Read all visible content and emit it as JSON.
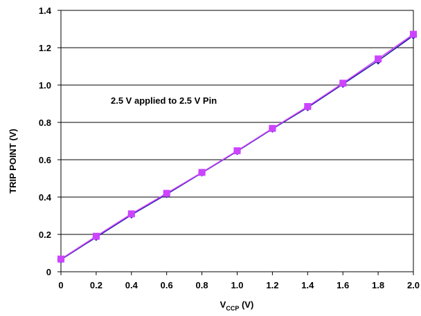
{
  "chart_data": {
    "type": "line",
    "title": "",
    "xlabel": "V",
    "xlabel_sub": "CCP",
    "xlabel_unit": " (V)",
    "ylabel": "TRIP POINT (V)",
    "annotation": "2.5 V applied to 2.5 V Pin",
    "xlim": [
      0,
      2.0
    ],
    "ylim": [
      0,
      1.4
    ],
    "x_ticks": [
      "0",
      "0.2",
      "0.4",
      "0.6",
      "0.8",
      "1.0",
      "1.2",
      "1.4",
      "1.6",
      "1.8",
      "2.0"
    ],
    "y_ticks": [
      "0",
      "0.2",
      "0.4",
      "0.6",
      "0.8",
      "1.0",
      "1.2",
      "1.4"
    ],
    "grid": "horizontal",
    "series": [
      {
        "marker": "diamond",
        "color": "#1f1f9c",
        "x": [
          0,
          0.2,
          0.4,
          0.6,
          0.8,
          1.0,
          1.2,
          1.4,
          1.6,
          1.8,
          2.0
        ],
        "y": [
          0.065,
          0.185,
          0.305,
          0.415,
          0.53,
          0.645,
          0.765,
          0.88,
          1.005,
          1.13,
          1.265
        ]
      },
      {
        "marker": "square",
        "color": "#cc44ff",
        "x": [
          0,
          0.2,
          0.4,
          0.6,
          0.8,
          1.0,
          1.2,
          1.4,
          1.6,
          1.8,
          2.0
        ],
        "y": [
          0.068,
          0.19,
          0.31,
          0.42,
          0.532,
          0.648,
          0.768,
          0.885,
          1.01,
          1.14,
          1.272
        ]
      }
    ]
  }
}
